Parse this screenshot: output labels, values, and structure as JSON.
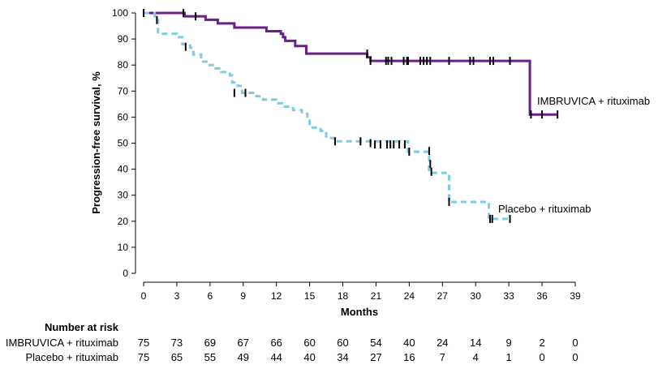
{
  "chart_data": {
    "type": "line",
    "title": "",
    "xlabel": "Months",
    "ylabel": "Progression-free survival, %",
    "xlim": [
      0,
      39
    ],
    "ylim": [
      0,
      100
    ],
    "xticks": [
      0,
      3,
      6,
      9,
      12,
      15,
      18,
      21,
      24,
      27,
      30,
      33,
      36,
      39
    ],
    "yticks": [
      0,
      10,
      20,
      30,
      40,
      50,
      60,
      70,
      80,
      90,
      100
    ],
    "grid": false,
    "colors": {
      "ibrutinib": "#6a1f8c",
      "placebo": "#80cbe2",
      "censor": "#000000"
    },
    "series": [
      {
        "name": "IMBRUVICA + rituximab",
        "style": "solid",
        "steps": [
          [
            0,
            100
          ],
          [
            3.7,
            98.7
          ],
          [
            5.6,
            97.4
          ],
          [
            6.7,
            96
          ],
          [
            8.2,
            94.4
          ],
          [
            11.1,
            93
          ],
          [
            12.4,
            92
          ],
          [
            12.6,
            90.7
          ],
          [
            12.8,
            89.3
          ],
          [
            13.7,
            87.3
          ],
          [
            14.7,
            84.4
          ],
          [
            20.2,
            83
          ],
          [
            20.5,
            81.6
          ],
          [
            34.9,
            61
          ],
          [
            37.4,
            61
          ]
        ],
        "censored": [
          [
            0,
            100
          ],
          [
            3.6,
            100
          ],
          [
            4.7,
            98.7
          ],
          [
            20.2,
            84.4
          ],
          [
            20.5,
            81.6
          ],
          [
            21.9,
            81.6
          ],
          [
            22.1,
            81.6
          ],
          [
            22.4,
            81.6
          ],
          [
            23.5,
            81.6
          ],
          [
            23.8,
            81.6
          ],
          [
            23.9,
            81.6
          ],
          [
            25.0,
            81.6
          ],
          [
            25.3,
            81.6
          ],
          [
            25.6,
            81.6
          ],
          [
            25.9,
            81.6
          ],
          [
            27.6,
            81.6
          ],
          [
            29.5,
            81.6
          ],
          [
            29.8,
            81.6
          ],
          [
            31.3,
            81.6
          ],
          [
            31.6,
            81.6
          ],
          [
            33.1,
            81.6
          ],
          [
            35.0,
            61
          ],
          [
            36.0,
            61
          ],
          [
            37.4,
            61
          ]
        ]
      },
      {
        "name": "Placebo + rituximab",
        "style": "dashed",
        "steps": [
          [
            0,
            100
          ],
          [
            1.0,
            97.3
          ],
          [
            1.3,
            92
          ],
          [
            3,
            90.7
          ],
          [
            3.5,
            88
          ],
          [
            4.2,
            86.7
          ],
          [
            4.5,
            84
          ],
          [
            5.2,
            81.3
          ],
          [
            5.8,
            80
          ],
          [
            6.5,
            78.7
          ],
          [
            7,
            77.3
          ],
          [
            7.8,
            76
          ],
          [
            8,
            73.3
          ],
          [
            8.5,
            72
          ],
          [
            8.9,
            69.3
          ],
          [
            10.2,
            68
          ],
          [
            10.8,
            66.7
          ],
          [
            12,
            65.3
          ],
          [
            12.5,
            64
          ],
          [
            13.5,
            62.7
          ],
          [
            14.3,
            61.3
          ],
          [
            14.8,
            58.7
          ],
          [
            15,
            56
          ],
          [
            16,
            54.7
          ],
          [
            16.5,
            52
          ],
          [
            17.2,
            50.7
          ],
          [
            23.9,
            46.7
          ],
          [
            25.8,
            38.6
          ],
          [
            27.6,
            27.4
          ],
          [
            31.2,
            20.9
          ],
          [
            33.1,
            20.9
          ]
        ],
        "censored": [
          [
            0,
            100
          ],
          [
            1.2,
            97.3
          ],
          [
            3.8,
            87
          ],
          [
            8.2,
            69.3
          ],
          [
            9.2,
            69.3
          ],
          [
            17.3,
            50.7
          ],
          [
            19.6,
            50.7
          ],
          [
            20.5,
            50
          ],
          [
            20.9,
            49.5
          ],
          [
            21.4,
            49.5
          ],
          [
            22.0,
            49.5
          ],
          [
            22.3,
            49.5
          ],
          [
            22.6,
            49.5
          ],
          [
            23.1,
            49.5
          ],
          [
            23.6,
            49.5
          ],
          [
            24.0,
            46.7
          ],
          [
            25.8,
            47
          ],
          [
            25.9,
            42
          ],
          [
            26.0,
            39
          ],
          [
            27.6,
            27.4
          ],
          [
            31.3,
            20.9
          ],
          [
            31.5,
            20.9
          ],
          [
            33.1,
            20.9
          ]
        ]
      }
    ],
    "annotations": [
      {
        "text": "IMBRUVICA + rituximab",
        "x": 35.8,
        "y": 66
      },
      {
        "text": "Placebo + rituximab",
        "x": 32.8,
        "y": 25
      }
    ],
    "risk_table": {
      "title": "Number at risk",
      "rows": [
        {
          "label": "IMBRUVICA + rituximab",
          "values": [
            75,
            73,
            69,
            67,
            66,
            60,
            60,
            54,
            40,
            24,
            14,
            9,
            2,
            0
          ]
        },
        {
          "label": "Placebo + rituximab",
          "values": [
            75,
            65,
            55,
            49,
            44,
            40,
            34,
            27,
            16,
            7,
            4,
            1,
            0,
            0
          ]
        }
      ]
    }
  }
}
